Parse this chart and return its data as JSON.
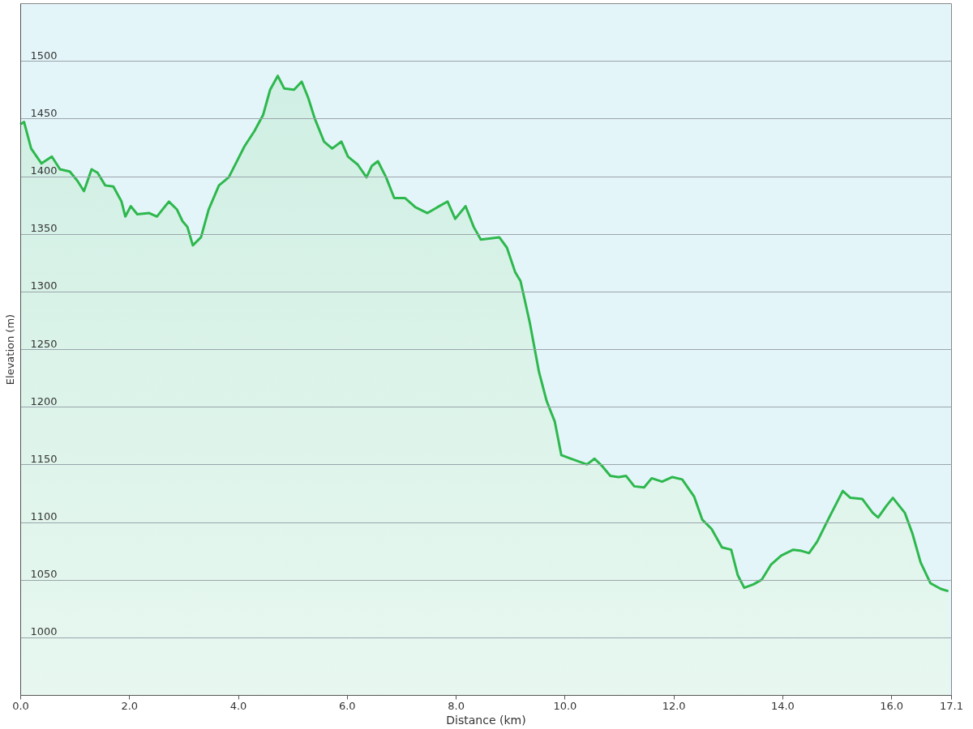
{
  "chart_data": {
    "type": "area",
    "xlabel": "Distance  (km)",
    "ylabel": "Elevation (m)",
    "xlim": [
      0,
      17.1
    ],
    "ylim": [
      950,
      1550
    ],
    "xticks": [
      {
        "value": 0,
        "label": "0.0"
      },
      {
        "value": 2,
        "label": "2.0"
      },
      {
        "value": 4,
        "label": "4.0"
      },
      {
        "value": 6,
        "label": "6.0"
      },
      {
        "value": 8,
        "label": "8.0"
      },
      {
        "value": 10,
        "label": "10.0"
      },
      {
        "value": 12,
        "label": "12.0"
      },
      {
        "value": 14,
        "label": "14.0"
      },
      {
        "value": 16,
        "label": "16.0"
      },
      17.1
    ],
    "yticks": [
      1000,
      1050,
      1100,
      1150,
      1200,
      1250,
      1300,
      1350,
      1400,
      1450,
      1500
    ],
    "grid": "y",
    "legend": false,
    "line_style": "solid",
    "x": [
      0,
      0.07,
      0.2,
      0.39,
      0.58,
      0.73,
      0.91,
      1.05,
      1.17,
      1.31,
      1.42,
      1.56,
      1.71,
      1.86,
      1.93,
      2.03,
      2.15,
      2.37,
      2.51,
      2.73,
      2.88,
      2.98,
      3.07,
      3.17,
      3.32,
      3.46,
      3.65,
      3.83,
      3.97,
      4.12,
      4.3,
      4.46,
      4.59,
      4.73,
      4.85,
      5.03,
      5.17,
      5.29,
      5.41,
      5.58,
      5.73,
      5.9,
      6.02,
      6.2,
      6.36,
      6.46,
      6.57,
      6.72,
      6.87,
      7.07,
      7.26,
      7.48,
      7.66,
      7.85,
      7.99,
      8.18,
      8.33,
      8.46,
      8.8,
      8.94,
      9.09,
      9.19,
      9.36,
      9.53,
      9.67,
      9.82,
      9.94,
      10.11,
      10.41,
      10.55,
      10.7,
      10.84,
      10.99,
      11.13,
      11.28,
      11.46,
      11.6,
      11.79,
      11.98,
      12.16,
      12.38,
      12.53,
      12.7,
      12.89,
      13.06,
      13.18,
      13.3,
      13.47,
      13.62,
      13.79,
      13.98,
      14.2,
      14.35,
      14.49,
      14.64,
      14.86,
      15.11,
      15.25,
      15.47,
      15.66,
      15.76,
      15.91,
      16.03,
      16.25,
      16.39,
      16.54,
      16.72,
      16.91,
      17.05
    ],
    "series": [
      {
        "color": "#2db84d",
        "values": [
          1445,
          1447,
          1424,
          1411,
          1417,
          1406,
          1404,
          1396,
          1387,
          1406,
          1403,
          1392,
          1391,
          1378,
          1365,
          1374,
          1367,
          1368,
          1365,
          1378,
          1371,
          1361,
          1356,
          1340,
          1347,
          1371,
          1392,
          1399,
          1412,
          1426,
          1439,
          1453,
          1475,
          1487,
          1476,
          1475,
          1482,
          1468,
          1450,
          1430,
          1424,
          1430,
          1417,
          1410,
          1399,
          1409,
          1413,
          1399,
          1381,
          1381,
          1373,
          1368,
          1373,
          1378,
          1363,
          1374,
          1356,
          1345,
          1347,
          1338,
          1317,
          1309,
          1273,
          1230,
          1205,
          1187,
          1158,
          1155,
          1150,
          1155,
          1148,
          1140,
          1139,
          1140,
          1131,
          1130,
          1138,
          1135,
          1139,
          1137,
          1122,
          1102,
          1094,
          1078,
          1076,
          1054,
          1043,
          1046,
          1050,
          1063,
          1071,
          1076,
          1075,
          1073,
          1083,
          1104,
          1127,
          1121,
          1120,
          1108,
          1104,
          1114,
          1121,
          1108,
          1090,
          1065,
          1047,
          1042,
          1040
        ]
      }
    ]
  }
}
